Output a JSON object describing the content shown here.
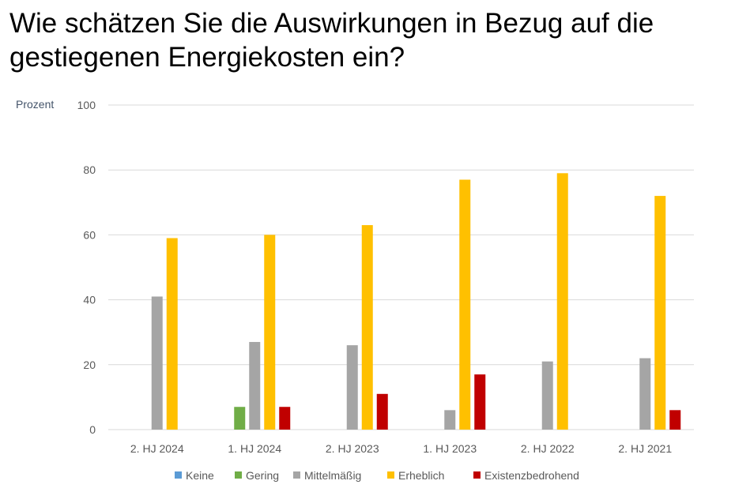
{
  "chart_data": {
    "type": "bar",
    "title": "Wie schätzen Sie die Auswirkungen in Bezug auf die gestiegenen Energiekosten ein?",
    "ylabel": "Prozent",
    "xlabel": "",
    "ylim": [
      0,
      100
    ],
    "yticks": [
      0,
      20,
      40,
      60,
      80,
      100
    ],
    "grid": true,
    "legend": "bottom",
    "categories": [
      "2. HJ 2024",
      "1. HJ 2024",
      "2. HJ 2023",
      "1. HJ 2023",
      "2. HJ 2022",
      "2. HJ 2021"
    ],
    "series": [
      {
        "name": "Keine",
        "color": "#5b9bd5",
        "values": [
          0,
          0,
          0,
          0,
          0,
          0
        ]
      },
      {
        "name": "Gering",
        "color": "#70ad47",
        "values": [
          0,
          7,
          0,
          0,
          0,
          0
        ]
      },
      {
        "name": "Mittelmäßig",
        "color": "#a5a5a5",
        "values": [
          41,
          27,
          26,
          6,
          21,
          22
        ]
      },
      {
        "name": "Erheblich",
        "color": "#ffc000",
        "values": [
          59,
          60,
          63,
          77,
          79,
          72
        ]
      },
      {
        "name": "Existenzbedrohend",
        "color": "#c00000",
        "values": [
          0,
          7,
          11,
          17,
          0,
          6
        ]
      }
    ]
  }
}
